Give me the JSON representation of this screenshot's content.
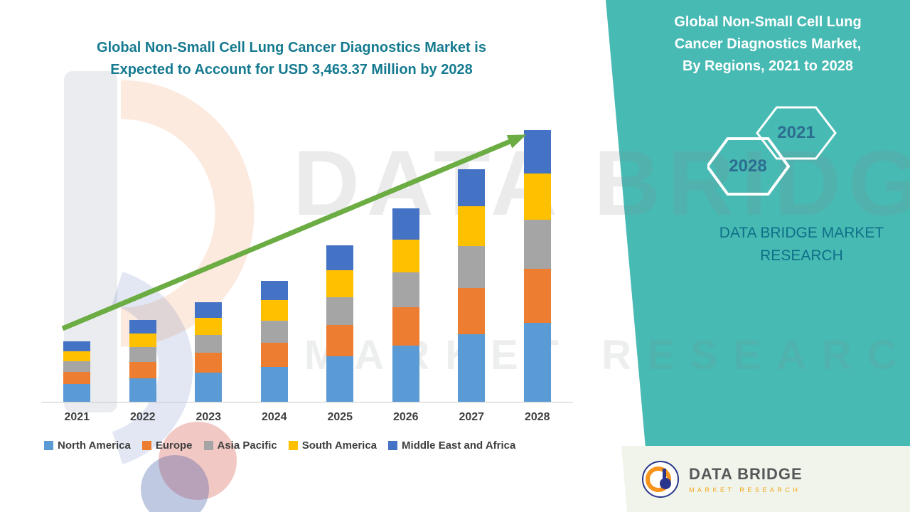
{
  "left": {
    "title_lines": [
      "Global Non-Small Cell Lung Cancer Diagnostics Market is",
      "Expected to Account for USD 3,463.37 Million by 2028"
    ]
  },
  "right_panel": {
    "bg_color": "#48BAB4",
    "title_lines": [
      "Global Non-Small Cell Lung",
      "Cancer Diagnostics Market,",
      "By Regions, 2021 to 2028"
    ],
    "hexagon_years": [
      "2021",
      "2028"
    ],
    "brand_text": "DATA BRIDGE MARKET RESEARCH"
  },
  "watermark": {
    "line1": "DATA BRIDGE",
    "line2": "MARKET RESEARCH"
  },
  "logo_box": {
    "name": "DATA BRIDGE",
    "tagline": "MARKET RESEARCH"
  },
  "chart_data": {
    "type": "bar",
    "stacked": true,
    "title": "Global Non-Small Cell Lung Cancer Diagnostics Market is Expected to Account for USD 3,463.37 Million by 2028",
    "xlabel": "",
    "ylabel": "",
    "categories": [
      "2021",
      "2022",
      "2023",
      "2024",
      "2025",
      "2026",
      "2027",
      "2028"
    ],
    "series": [
      {
        "name": "North America",
        "color": "#5B9BD5",
        "values": [
          223,
          302,
          368,
          448,
          579,
          715,
          860,
          1004.38
        ]
      },
      {
        "name": "Europe",
        "color": "#ED7D31",
        "values": [
          154,
          208,
          254,
          309,
          399,
          493,
          593,
          692.67
        ]
      },
      {
        "name": "Asia Pacific",
        "color": "#A5A5A5",
        "values": [
          139,
          187,
          229,
          278,
          359,
          444,
          534,
          623.41
        ]
      },
      {
        "name": "South America",
        "color": "#FFC000",
        "values": [
          131,
          177,
          216,
          263,
          339,
          419,
          504,
          588.77
        ]
      },
      {
        "name": "Middle East and Africa",
        "color": "#4472C4",
        "values": [
          123,
          166,
          203,
          247,
          319,
          394,
          474,
          554.14
        ]
      }
    ],
    "totals": [
      770,
      1040,
      1270,
      1545,
      1995,
      2465,
      2965,
      3463.37
    ],
    "ylim": [
      0,
      3600
    ],
    "grid": false,
    "legend_position": "bottom",
    "annotations": [
      "green upward trend arrow from 2021 to 2028"
    ]
  }
}
